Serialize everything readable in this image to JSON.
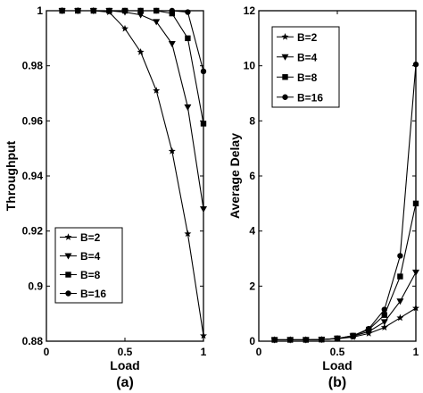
{
  "chart_data": [
    {
      "type": "line",
      "panel_label": "(a)",
      "xlabel": "Load",
      "ylabel": "Throughput",
      "xlim": [
        0,
        1
      ],
      "ylim": [
        0.88,
        1.0
      ],
      "xticks": [
        "0",
        "0.5",
        "1"
      ],
      "yticks": [
        "0.88",
        "0.9",
        "0.92",
        "0.94",
        "0.96",
        "0.98",
        "1"
      ],
      "legend_position": "bottom-left",
      "grid": false,
      "x": [
        0.1,
        0.2,
        0.3,
        0.4,
        0.5,
        0.6,
        0.7,
        0.8,
        0.9,
        1.0
      ],
      "series": [
        {
          "name": "B=2",
          "marker": "star",
          "values": [
            1.0,
            1.0,
            1.0,
            0.9995,
            0.9935,
            0.985,
            0.971,
            0.949,
            0.919,
            0.882
          ]
        },
        {
          "name": "B=4",
          "marker": "triangle-down",
          "values": [
            1.0,
            1.0,
            1.0,
            1.0,
            0.9995,
            0.9985,
            0.996,
            0.988,
            0.965,
            0.928
          ]
        },
        {
          "name": "B=8",
          "marker": "square",
          "values": [
            1.0,
            1.0,
            1.0,
            1.0,
            1.0,
            1.0,
            1.0,
            0.999,
            0.99,
            0.959
          ]
        },
        {
          "name": "B=16",
          "marker": "circle",
          "values": [
            1.0,
            1.0,
            1.0,
            1.0,
            1.0,
            1.0,
            1.0,
            1.0,
            0.9995,
            0.978
          ]
        }
      ]
    },
    {
      "type": "line",
      "panel_label": "(b)",
      "xlabel": "Load",
      "ylabel": "Average Delay",
      "xlim": [
        0,
        1
      ],
      "ylim": [
        0,
        12
      ],
      "xticks": [
        "0",
        "0.5",
        "1"
      ],
      "yticks": [
        "0",
        "2",
        "4",
        "6",
        "8",
        "10",
        "12"
      ],
      "legend_position": "top-left",
      "grid": false,
      "x": [
        0.1,
        0.2,
        0.3,
        0.4,
        0.5,
        0.6,
        0.7,
        0.8,
        0.9,
        1.0
      ],
      "series": [
        {
          "name": "B=2",
          "marker": "star",
          "values": [
            0.05,
            0.05,
            0.05,
            0.06,
            0.09,
            0.15,
            0.28,
            0.5,
            0.85,
            1.2
          ]
        },
        {
          "name": "B=4",
          "marker": "triangle-down",
          "values": [
            0.05,
            0.05,
            0.05,
            0.06,
            0.1,
            0.18,
            0.35,
            0.7,
            1.45,
            2.5
          ]
        },
        {
          "name": "B=8",
          "marker": "square",
          "values": [
            0.05,
            0.05,
            0.05,
            0.06,
            0.1,
            0.2,
            0.42,
            0.95,
            2.35,
            5.0
          ]
        },
        {
          "name": "B=16",
          "marker": "circle",
          "values": [
            0.05,
            0.05,
            0.05,
            0.06,
            0.1,
            0.2,
            0.45,
            1.15,
            3.1,
            10.05
          ]
        }
      ]
    }
  ]
}
